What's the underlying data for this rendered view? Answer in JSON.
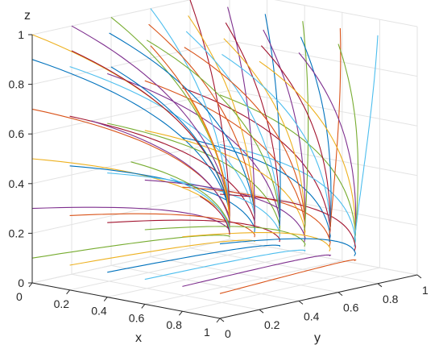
{
  "chart_data": {
    "type": "line",
    "projection": "3d",
    "xlabel": "x",
    "ylabel": "y",
    "zlabel": "z",
    "xlim": [
      0,
      1
    ],
    "ylim": [
      0,
      1
    ],
    "zlim": [
      0,
      1
    ],
    "x_ticks": [
      "0",
      "0.2",
      "0.4",
      "0.6",
      "0.8",
      "1"
    ],
    "y_ticks": [
      "0",
      "0.2",
      "0.4",
      "0.6",
      "0.8",
      "1"
    ],
    "z_ticks": [
      "0",
      "0.2",
      "0.4",
      "0.6",
      "0.8",
      "1"
    ],
    "grid": true,
    "colors": [
      "#0072BD",
      "#D95319",
      "#EDB120",
      "#7E2F8E",
      "#77AC30",
      "#4DBEEE",
      "#A2142F"
    ],
    "end_point": {
      "x": 0.0,
      "y": 1.0,
      "z": 0.0
    },
    "series_start_points": [
      {
        "x": 0.0,
        "y": 0.0,
        "z": 0.9
      },
      {
        "x": 0.0,
        "y": 0.0,
        "z": 0.7
      },
      {
        "x": 0.0,
        "y": 0.0,
        "z": 0.5
      },
      {
        "x": 0.0,
        "y": 0.0,
        "z": 0.3
      },
      {
        "x": 0.0,
        "y": 0.0,
        "z": 0.1
      },
      {
        "x": 0.2,
        "y": 0.0,
        "z": 0.9
      },
      {
        "x": 0.2,
        "y": 0.0,
        "z": 0.7
      },
      {
        "x": 0.2,
        "y": 0.0,
        "z": 0.5
      },
      {
        "x": 0.2,
        "y": 0.0,
        "z": 0.3
      },
      {
        "x": 0.2,
        "y": 0.0,
        "z": 0.1
      },
      {
        "x": 0.4,
        "y": 0.0,
        "z": 0.9
      },
      {
        "x": 0.4,
        "y": 0.0,
        "z": 0.7
      },
      {
        "x": 0.4,
        "y": 0.0,
        "z": 0.5
      },
      {
        "x": 0.4,
        "y": 0.0,
        "z": 0.3
      },
      {
        "x": 0.4,
        "y": 0.0,
        "z": 0.1
      },
      {
        "x": 0.6,
        "y": 0.0,
        "z": 0.9
      },
      {
        "x": 0.6,
        "y": 0.0,
        "z": 0.7
      },
      {
        "x": 0.6,
        "y": 0.0,
        "z": 0.5
      },
      {
        "x": 0.6,
        "y": 0.0,
        "z": 0.3
      },
      {
        "x": 0.6,
        "y": 0.0,
        "z": 0.1
      },
      {
        "x": 0.8,
        "y": 0.0,
        "z": 0.9
      },
      {
        "x": 0.8,
        "y": 0.0,
        "z": 0.7
      },
      {
        "x": 0.8,
        "y": 0.0,
        "z": 0.5
      },
      {
        "x": 0.8,
        "y": 0.0,
        "z": 0.3
      },
      {
        "x": 0.8,
        "y": 0.0,
        "z": 0.1
      },
      {
        "x": 1.0,
        "y": 0.0,
        "z": 0.9
      },
      {
        "x": 1.0,
        "y": 0.0,
        "z": 0.7
      },
      {
        "x": 1.0,
        "y": 0.0,
        "z": 0.5
      },
      {
        "x": 1.0,
        "y": 0.0,
        "z": 0.3
      },
      {
        "x": 1.0,
        "y": 0.0,
        "z": 0.1
      },
      {
        "x": 0.0,
        "y": 0.0,
        "z": 1.0
      },
      {
        "x": 0.0,
        "y": 0.2,
        "z": 1.0
      },
      {
        "x": 0.0,
        "y": 0.4,
        "z": 1.0
      },
      {
        "x": 0.0,
        "y": 0.6,
        "z": 1.0
      },
      {
        "x": 0.0,
        "y": 0.8,
        "z": 1.0
      },
      {
        "x": 0.2,
        "y": 0.2,
        "z": 1.0
      },
      {
        "x": 0.2,
        "y": 0.4,
        "z": 1.0
      },
      {
        "x": 0.2,
        "y": 0.6,
        "z": 1.0
      },
      {
        "x": 0.2,
        "y": 0.8,
        "z": 1.0
      },
      {
        "x": 0.4,
        "y": 0.2,
        "z": 1.0
      },
      {
        "x": 0.4,
        "y": 0.4,
        "z": 1.0
      },
      {
        "x": 0.4,
        "y": 0.6,
        "z": 1.0
      },
      {
        "x": 0.4,
        "y": 0.8,
        "z": 1.0
      },
      {
        "x": 0.6,
        "y": 0.2,
        "z": 1.0
      },
      {
        "x": 0.6,
        "y": 0.4,
        "z": 1.0
      },
      {
        "x": 0.6,
        "y": 0.6,
        "z": 1.0
      },
      {
        "x": 0.6,
        "y": 0.8,
        "z": 1.0
      },
      {
        "x": 0.8,
        "y": 0.2,
        "z": 1.0
      },
      {
        "x": 0.8,
        "y": 0.4,
        "z": 1.0
      },
      {
        "x": 0.8,
        "y": 0.6,
        "z": 1.0
      },
      {
        "x": 0.8,
        "y": 0.8,
        "z": 1.0
      },
      {
        "x": 1.0,
        "y": 0.2,
        "z": 1.0
      },
      {
        "x": 1.0,
        "y": 0.4,
        "z": 1.0
      },
      {
        "x": 1.0,
        "y": 0.6,
        "z": 1.0
      },
      {
        "x": 1.0,
        "y": 0.8,
        "z": 1.0
      },
      {
        "x": 0.0,
        "y": 0.2,
        "z": 0.9
      },
      {
        "x": 0.0,
        "y": 0.4,
        "z": 0.8
      },
      {
        "x": 0.0,
        "y": 0.6,
        "z": 0.85
      },
      {
        "x": 0.0,
        "y": 0.8,
        "z": 0.6
      },
      {
        "x": 0.0,
        "y": 0.3,
        "z": 0.6
      },
      {
        "x": 0.0,
        "y": 0.5,
        "z": 0.4
      },
      {
        "x": 0.0,
        "y": 0.7,
        "z": 0.3
      },
      {
        "x": 0.0,
        "y": 0.85,
        "z": 0.2
      }
    ]
  }
}
